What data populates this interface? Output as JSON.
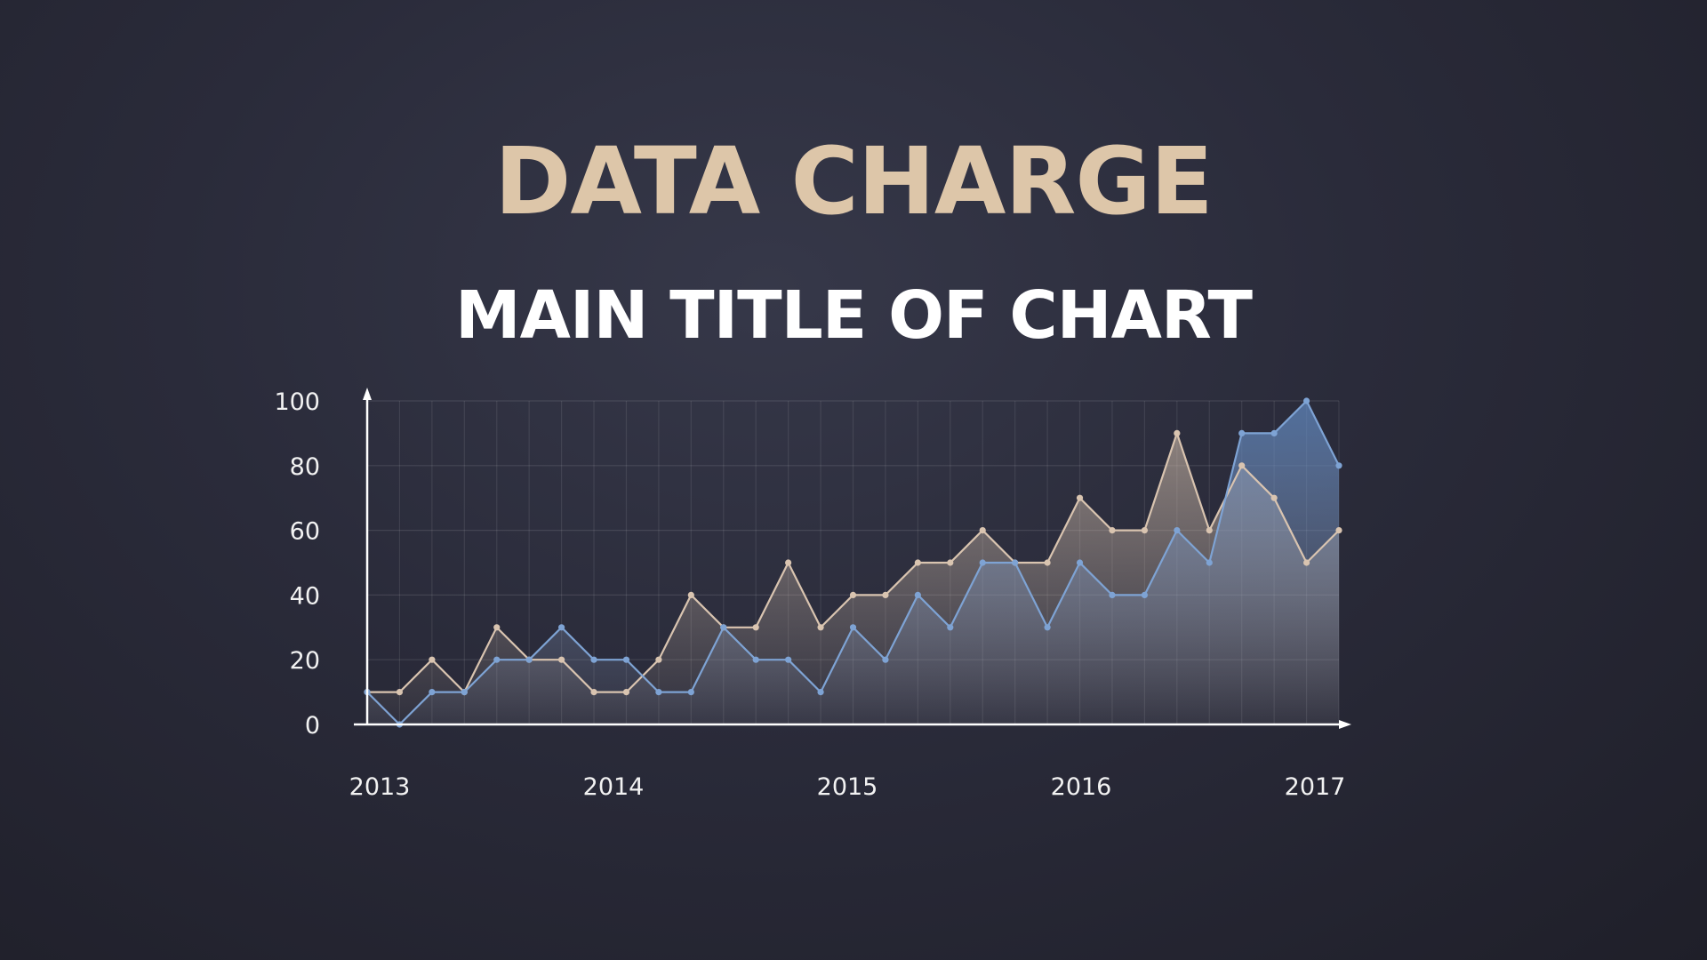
{
  "header": {
    "title": "DATA CHARGE",
    "subtitle": "MAIN TITLE OF CHART"
  },
  "chart_data": {
    "type": "area",
    "title": "DATA CHARGE",
    "subtitle": "MAIN TITLE OF CHART",
    "xlabel": "",
    "ylabel": "",
    "ylim": [
      0,
      100
    ],
    "yticks": [
      "0",
      "20",
      "40",
      "60",
      "80",
      "100"
    ],
    "xticks": [
      "2013",
      "2014",
      "2015",
      "2016",
      "2017"
    ],
    "grid": true,
    "series": [
      {
        "color": "#d9c4b0",
        "values": [
          10,
          10,
          20,
          10,
          30,
          20,
          20,
          10,
          10,
          20,
          40,
          30,
          30,
          50,
          30,
          40,
          40,
          50,
          50,
          60,
          50,
          50,
          70,
          60,
          60,
          90,
          60,
          80,
          70,
          50,
          60
        ]
      },
      {
        "color": "#7ea3d4",
        "values": [
          10,
          0,
          10,
          10,
          20,
          20,
          30,
          20,
          20,
          10,
          10,
          30,
          20,
          20,
          10,
          30,
          20,
          40,
          30,
          50,
          50,
          30,
          50,
          40,
          40,
          60,
          50,
          90,
          90,
          100,
          80
        ]
      }
    ]
  }
}
